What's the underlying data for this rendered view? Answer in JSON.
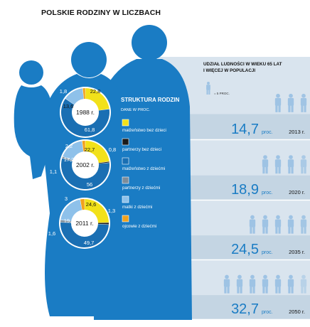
{
  "page_title": "POLSKIE RODZINY W LICZBACH",
  "colors": {
    "silhouette": "#1a7cc4",
    "panel": "#d9e4ee",
    "panel_stripe": "#c4d5e3",
    "people_icon": "#9ec3e4",
    "big_number": "#1a7cc4"
  },
  "chart_data": [
    {
      "type": "pie",
      "title": "STRUKTURA RODZIN",
      "subtitle": "DANE W PROC.",
      "legend": [
        {
          "key": "m_bez",
          "label": "małżeństwo bez dzieci",
          "color": "#f2e11a"
        },
        {
          "key": "p_bez",
          "label": "partnerzy bez dzieci",
          "color": "#1a1a1a"
        },
        {
          "key": "m_z",
          "label": "małżeństwo z dziećmi",
          "color": "#1a6fb3"
        },
        {
          "key": "p_z",
          "label": "partnerzy z dziećmi",
          "color": "#7d8c99"
        },
        {
          "key": "matki",
          "label": "matki z dziećmi",
          "color": "#8ec1ea"
        },
        {
          "key": "ojcowie",
          "label": "ojcowie z dziećmi",
          "color": "#f2a21c"
        }
      ],
      "rings": [
        {
          "year_label": "1988 r.",
          "segments": [
            {
              "key": "m_bez",
              "value": 22.8,
              "label": "22,8"
            },
            {
              "key": "p_bez",
              "value": 0.0,
              "label": ""
            },
            {
              "key": "m_z",
              "value": 61.8,
              "label": "61,8"
            },
            {
              "key": "p_z",
              "value": 0.0,
              "label": ""
            },
            {
              "key": "matki",
              "value": 13.6,
              "label": "13,6"
            },
            {
              "key": "ojcowie",
              "value": 1.8,
              "label": "1,8"
            }
          ]
        },
        {
          "year_label": "2002 r.",
          "segments": [
            {
              "key": "m_bez",
              "value": 22.7,
              "label": "22,7"
            },
            {
              "key": "p_bez",
              "value": 0.8,
              "label": "0,8"
            },
            {
              "key": "m_z",
              "value": 56,
              "label": "56"
            },
            {
              "key": "p_z",
              "value": 1.1,
              "label": "1,1"
            },
            {
              "key": "matki",
              "value": 17.2,
              "label": "17,2"
            },
            {
              "key": "ojcowie",
              "value": 2.2,
              "label": "2,2"
            }
          ]
        },
        {
          "year_label": "2011 r.",
          "segments": [
            {
              "key": "m_bez",
              "value": 24.6,
              "label": "24,6"
            },
            {
              "key": "p_bez",
              "value": 1.3,
              "label": "1,3"
            },
            {
              "key": "m_z",
              "value": 49.7,
              "label": "49,7"
            },
            {
              "key": "p_z",
              "value": 1.6,
              "label": "1,6"
            },
            {
              "key": "matki",
              "value": 19.8,
              "label": "19,8"
            },
            {
              "key": "ojcowie",
              "value": 3,
              "label": "3"
            }
          ]
        }
      ]
    },
    {
      "type": "bar",
      "title": "UDZIAŁ LUDNOŚCI W WIEKU 65 LAT I WIĘCEJ W POPULACJI",
      "unit_note": "= 5 PROC.",
      "unit_value": 5,
      "value_unit": "proc.",
      "categories": [
        "2013 r.",
        "2020 r.",
        "2035 r.",
        "2050 r."
      ],
      "values": [
        14.7,
        18.9,
        24.5,
        32.7
      ],
      "value_labels": [
        "14,7",
        "18,9",
        "24,5",
        "32,7"
      ]
    }
  ]
}
